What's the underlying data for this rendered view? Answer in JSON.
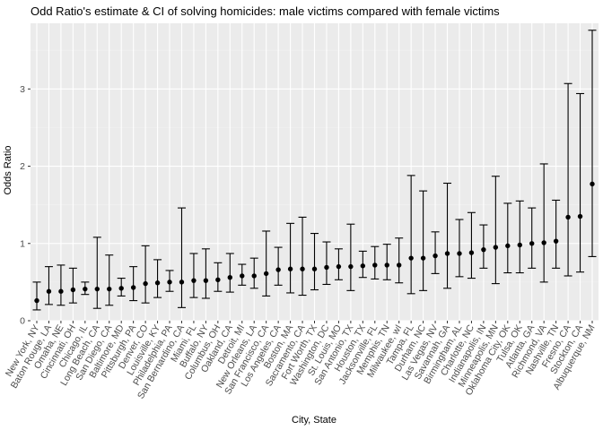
{
  "chart_data": {
    "type": "scatter",
    "title": "Odd Ratio's estimate & CI of solving homicides: male victims compared with female victims",
    "xlabel": "City, State",
    "ylabel": "Odds Ratio",
    "ylim": [
      0,
      3.85
    ],
    "yticks": [
      0,
      1,
      2,
      3
    ],
    "grid": true,
    "categories": [
      "New York, NY",
      "Baton Rouge, LA",
      "Omaha, NE",
      "Cincinnati, OH",
      "Chicago, IL",
      "Long Beach, CA",
      "San Diego, CA",
      "Baltimore, MD",
      "Pittsburgh, PA",
      "Denver, CO",
      "Louisville, KY",
      "Philadelphia, PA",
      "San Bernardino, CA",
      "Miami, FL",
      "Buffalo, NY",
      "Columbus, OH",
      "Oakland, CA",
      "Detroit, MI",
      "New Orleans, LA",
      "San Francisco, CA",
      "Los Angeles, CA",
      "Boston, MA",
      "Sacramento, CA",
      "Fort Worth, TX",
      "Washington, DC",
      "St. Louis, MO",
      "San Antonio, TX",
      "Houston, TX",
      "Jacksonville, FL",
      "Memphis, TN",
      "Milwaukee, wI",
      "Tampa, FL",
      "Durham, NC",
      "Las Vegas, NV",
      "Savannah, GA",
      "Birmingham, AL",
      "Charlotte, NC",
      "Indianapolis, IN",
      "Minneapolis, MN",
      "Oklahoma City, OK",
      "Tulsa, OK",
      "Atlanta, GA",
      "Richmond, VA",
      "Nashville, TN",
      "Fresno, CA",
      "Stockton, CA",
      "Albuquerque, NM"
    ],
    "series": [
      {
        "estimate": [
          0.26,
          0.38,
          0.38,
          0.4,
          0.41,
          0.41,
          0.41,
          0.42,
          0.43,
          0.48,
          0.49,
          0.5,
          0.5,
          0.52,
          0.52,
          0.53,
          0.56,
          0.58,
          0.58,
          0.61,
          0.66,
          0.67,
          0.67,
          0.67,
          0.69,
          0.7,
          0.7,
          0.71,
          0.72,
          0.72,
          0.72,
          0.81,
          0.81,
          0.84,
          0.87,
          0.87,
          0.88,
          0.92,
          0.95,
          0.97,
          0.98,
          1.0,
          1.01,
          1.03,
          1.34,
          1.35,
          1.77
        ],
        "lower": [
          0.14,
          0.21,
          0.2,
          0.23,
          0.34,
          0.16,
          0.2,
          0.32,
          0.26,
          0.23,
          0.3,
          0.38,
          0.17,
          0.3,
          0.29,
          0.38,
          0.37,
          0.46,
          0.42,
          0.32,
          0.46,
          0.36,
          0.33,
          0.4,
          0.47,
          0.53,
          0.39,
          0.56,
          0.54,
          0.53,
          0.49,
          0.35,
          0.39,
          0.61,
          0.42,
          0.57,
          0.55,
          0.68,
          0.48,
          0.62,
          0.62,
          0.68,
          0.5,
          0.68,
          0.58,
          0.63,
          0.83
        ],
        "upper": [
          0.5,
          0.7,
          0.72,
          0.68,
          0.5,
          1.08,
          0.85,
          0.55,
          0.7,
          0.97,
          0.79,
          0.65,
          1.46,
          0.87,
          0.93,
          0.75,
          0.87,
          0.73,
          0.81,
          1.16,
          0.95,
          1.26,
          1.34,
          1.13,
          1.02,
          0.93,
          1.25,
          0.9,
          0.96,
          0.99,
          1.07,
          1.88,
          1.68,
          1.15,
          1.78,
          1.31,
          1.4,
          1.24,
          1.87,
          1.52,
          1.55,
          1.46,
          2.03,
          1.56,
          3.07,
          2.94,
          3.76
        ]
      }
    ]
  }
}
